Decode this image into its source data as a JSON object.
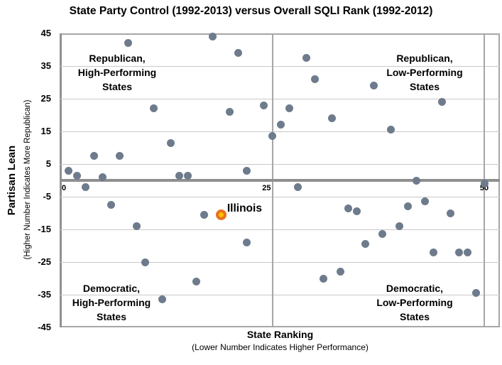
{
  "title": "State Party Control (1992-2013) versus Overall SQLI Rank (1992-2012)",
  "y_axis": {
    "title": "Partisan Lean",
    "subtitle": "(Higher Number Indicates More Republican)",
    "ticks": [
      45,
      35,
      25,
      15,
      5,
      -5,
      -15,
      -25,
      -35,
      -45
    ]
  },
  "x_axis": {
    "title": "State Ranking",
    "subtitle": "(Lower Number Indicates Higher Performance)",
    "ticks": [
      0,
      25,
      50
    ],
    "tick_align": [
      "left",
      "right",
      "center"
    ]
  },
  "quadrant_labels": {
    "top_left": [
      "Republican,",
      "High-Performing",
      "States"
    ],
    "top_right": [
      "Republican,",
      "Low-Performing",
      "States"
    ],
    "bottom_left": [
      "Democratic,",
      "High-Performing",
      "States"
    ],
    "bottom_right": [
      "Democratic,",
      "Low-Performing",
      "States"
    ]
  },
  "colors": {
    "dot": "#6e7b8c",
    "highlight_outer": "#e8711e",
    "highlight_inner": "#ffc000",
    "zero_line": "#8f8f8f",
    "gridline": "#c9c9c9",
    "axis_border": "#a6a6a6"
  },
  "chart_data": {
    "type": "scatter",
    "title": "State Party Control (1992-2013) versus Overall SQLI Rank (1992-2012)",
    "xlabel": "State Ranking (Lower Number Indicates Higher Performance)",
    "ylabel": "Partisan Lean (Higher Number Indicates More Republican)",
    "xlim": [
      0,
      51.8
    ],
    "ylim": [
      -45,
      45
    ],
    "x_gridlines": [
      25,
      50
    ],
    "grid": true,
    "points": [
      [
        18,
        44
      ],
      [
        8,
        42
      ],
      [
        21,
        39
      ],
      [
        24,
        23
      ],
      [
        11,
        22
      ],
      [
        20,
        21
      ],
      [
        25,
        13.5
      ],
      [
        13,
        11.5
      ],
      [
        4,
        7.5
      ],
      [
        7,
        7.5
      ],
      [
        1,
        3
      ],
      [
        22,
        3
      ],
      [
        2,
        1.5
      ],
      [
        14,
        1.5
      ],
      [
        15,
        1.5
      ],
      [
        5,
        1
      ],
      [
        29,
        37.5
      ],
      [
        30,
        31
      ],
      [
        37,
        29
      ],
      [
        45,
        24
      ],
      [
        27,
        22
      ],
      [
        32,
        19
      ],
      [
        26,
        17
      ],
      [
        39,
        15.5
      ],
      [
        42,
        0
      ],
      [
        3,
        -2
      ],
      [
        6,
        -7.5
      ],
      [
        17,
        -10.5
      ],
      [
        9,
        -14
      ],
      [
        22,
        -19
      ],
      [
        10,
        -25
      ],
      [
        16,
        -31
      ],
      [
        12,
        -36.5
      ],
      [
        28,
        -2
      ],
      [
        50,
        -1
      ],
      [
        43,
        -6.5
      ],
      [
        41,
        -8
      ],
      [
        34,
        -8.5
      ],
      [
        35,
        -9.5
      ],
      [
        46,
        -10
      ],
      [
        40,
        -14
      ],
      [
        38,
        -16.5
      ],
      [
        36,
        -19.5
      ],
      [
        44,
        -22
      ],
      [
        47,
        -22
      ],
      [
        48,
        -22
      ],
      [
        33,
        -28
      ],
      [
        31,
        -30
      ],
      [
        49,
        -34.5
      ]
    ],
    "highlight_point": {
      "name": "Illinois",
      "x": 19,
      "y": -10.5
    }
  }
}
